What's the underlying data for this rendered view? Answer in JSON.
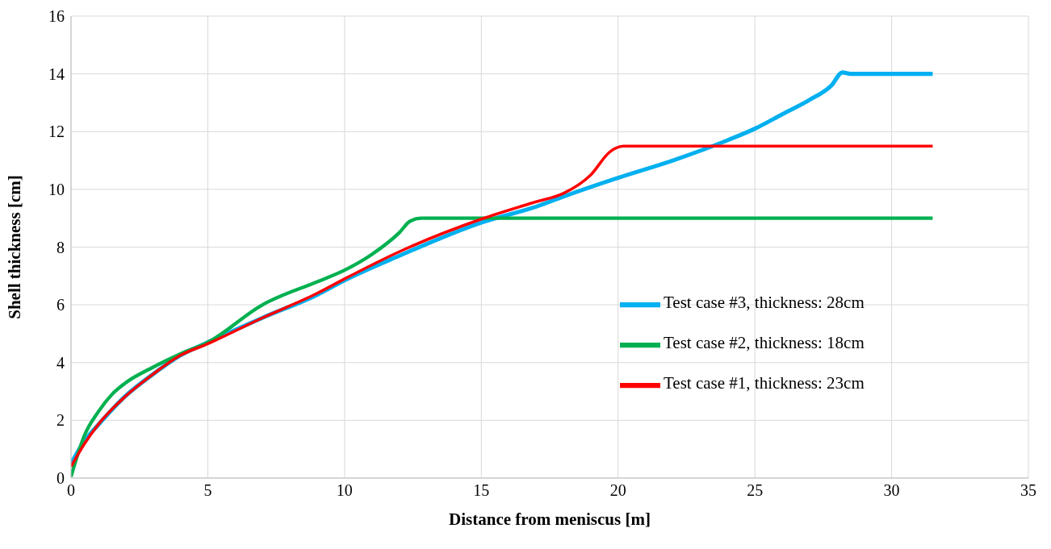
{
  "chart_data": {
    "type": "line",
    "xlabel": "Distance from meniscus [m]",
    "ylabel": "Shell thickness [cm]",
    "xlim": [
      0,
      35
    ],
    "xticks": [
      0,
      5,
      10,
      15,
      20,
      25,
      30,
      35
    ],
    "ylim": [
      0,
      16
    ],
    "yticks": [
      0,
      2,
      4,
      6,
      8,
      10,
      12,
      14,
      16
    ],
    "grid": true,
    "legend": "right",
    "marker": "none",
    "line_style": "solid",
    "series": [
      {
        "name": "Test case #3, thickness: 28cm",
        "color": "#00b0f0",
        "x": [
          0,
          0.5,
          1,
          2,
          3,
          4,
          5,
          7,
          9,
          10,
          12,
          15,
          17,
          18,
          20,
          22,
          24,
          25,
          26,
          27,
          27.8,
          28.2,
          28.5,
          31.5
        ],
        "values": [
          0.5,
          1.3,
          1.85,
          2.85,
          3.6,
          4.25,
          4.7,
          5.55,
          6.35,
          6.85,
          7.7,
          8.85,
          9.4,
          9.75,
          10.4,
          11,
          11.7,
          12.1,
          12.6,
          13.1,
          13.6,
          14.05,
          14,
          14
        ]
      },
      {
        "name": "Test case #2, thickness: 18cm",
        "color": "#00b050",
        "x": [
          0,
          0.5,
          1,
          1.5,
          2,
          3,
          4,
          5,
          7,
          9,
          10,
          11,
          12,
          12.4,
          12.8,
          31.5
        ],
        "values": [
          0.05,
          1.5,
          2.3,
          2.9,
          3.3,
          3.84,
          4.3,
          4.7,
          6,
          6.8,
          7.2,
          7.75,
          8.5,
          8.9,
          9,
          9
        ]
      },
      {
        "name": "Test case #1, thickness: 23cm",
        "color": "#ff0000",
        "x": [
          0,
          0.5,
          1,
          2,
          3,
          4,
          5,
          7,
          9,
          10,
          12,
          15,
          17,
          18,
          19,
          19.7,
          20.2,
          31.5
        ],
        "values": [
          0.4,
          1.2,
          1.86,
          2.84,
          3.6,
          4.25,
          4.65,
          5.55,
          6.4,
          6.9,
          7.84,
          8.97,
          9.57,
          9.86,
          10.5,
          11.3,
          11.5,
          11.5
        ]
      }
    ]
  }
}
